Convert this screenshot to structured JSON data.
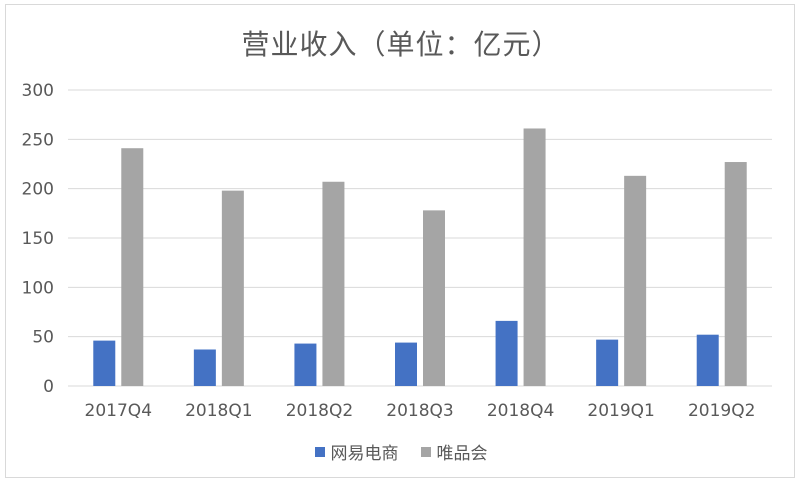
{
  "chart_data": {
    "type": "bar",
    "title": "营业收入（单位：亿元）",
    "categories": [
      "2017Q4",
      "2018Q1",
      "2018Q2",
      "2018Q3",
      "2018Q4",
      "2019Q1",
      "2019Q2"
    ],
    "series": [
      {
        "name": "网易电商",
        "color": "#4472c4",
        "values": [
          46,
          37,
          43,
          44,
          66,
          47,
          52
        ]
      },
      {
        "name": "唯品会",
        "color": "#a5a5a5",
        "values": [
          241,
          198,
          207,
          178,
          261,
          213,
          227
        ]
      }
    ],
    "ylim": [
      0,
      300
    ],
    "yticks": [
      0,
      50,
      100,
      150,
      200,
      250,
      300
    ],
    "grid": true,
    "legend_position": "bottom"
  }
}
